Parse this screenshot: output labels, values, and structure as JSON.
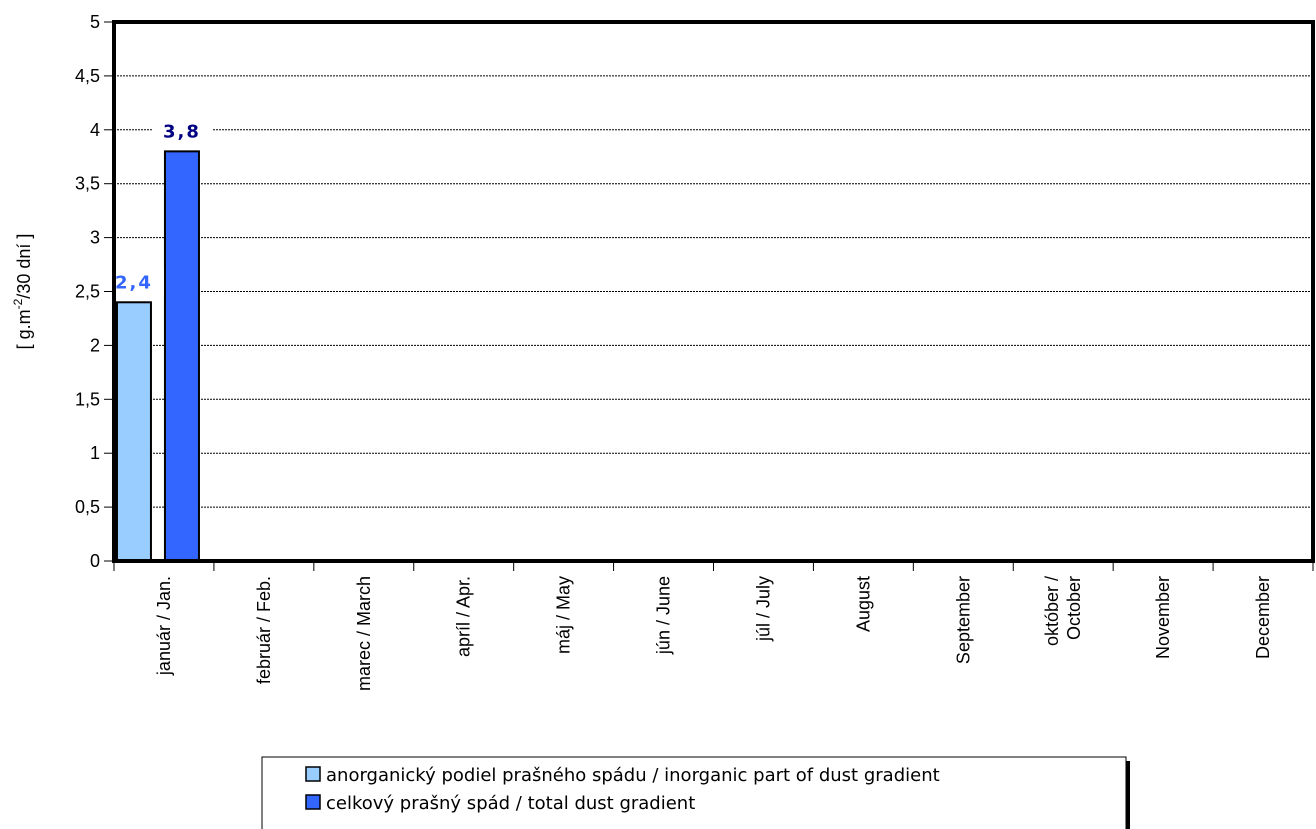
{
  "chart_data": {
    "type": "bar",
    "categories": [
      "január / Jan.",
      "február / Feb.",
      "marec / March",
      "apríl / Apr.",
      "máj / May",
      "jún / June",
      "júl / July",
      "August",
      "September",
      "október / October",
      "November",
      "December"
    ],
    "category_lines": [
      [
        "január / Jan."
      ],
      [
        "február / Feb."
      ],
      [
        "marec / March"
      ],
      [
        "apríl / Apr."
      ],
      [
        "máj / May"
      ],
      [
        "jún / June"
      ],
      [
        "júl / July"
      ],
      [
        "August"
      ],
      [
        "September"
      ],
      [
        "október /",
        "October"
      ],
      [
        "November"
      ],
      [
        "December"
      ]
    ],
    "series": [
      {
        "name": "anorganický podiel prašného spádu / inorganic part of dust gradient",
        "color": "#99ccff",
        "label_color": "#3366ff",
        "values": [
          2.4,
          null,
          null,
          null,
          null,
          null,
          null,
          null,
          null,
          null,
          null,
          null
        ],
        "labels": [
          "2,4",
          "",
          "",
          "",
          "",
          "",
          "",
          "",
          "",
          "",
          "",
          ""
        ]
      },
      {
        "name": "celkový prašný spád / total dust gradient",
        "color": "#3366ff",
        "label_color": "#000080",
        "values": [
          3.8,
          null,
          null,
          null,
          null,
          null,
          null,
          null,
          null,
          null,
          null,
          null
        ],
        "labels": [
          "3,8",
          "",
          "",
          "",
          "",
          "",
          "",
          "",
          "",
          "",
          "",
          ""
        ]
      }
    ],
    "ylabel": {
      "prefix": "[ g.m",
      "superscript": "-2",
      "suffix": "/30 dní ]"
    },
    "ylim": [
      0,
      5
    ],
    "yticks": [
      0,
      0.5,
      1,
      1.5,
      2,
      2.5,
      3,
      3.5,
      4,
      4.5,
      5
    ],
    "ytick_labels": [
      "0",
      "0,5",
      "1",
      "1,5",
      "2",
      "2,5",
      "3",
      "3,5",
      "4",
      "4,5",
      "5"
    ],
    "grid": true,
    "legend_placement": "bottom-center"
  }
}
